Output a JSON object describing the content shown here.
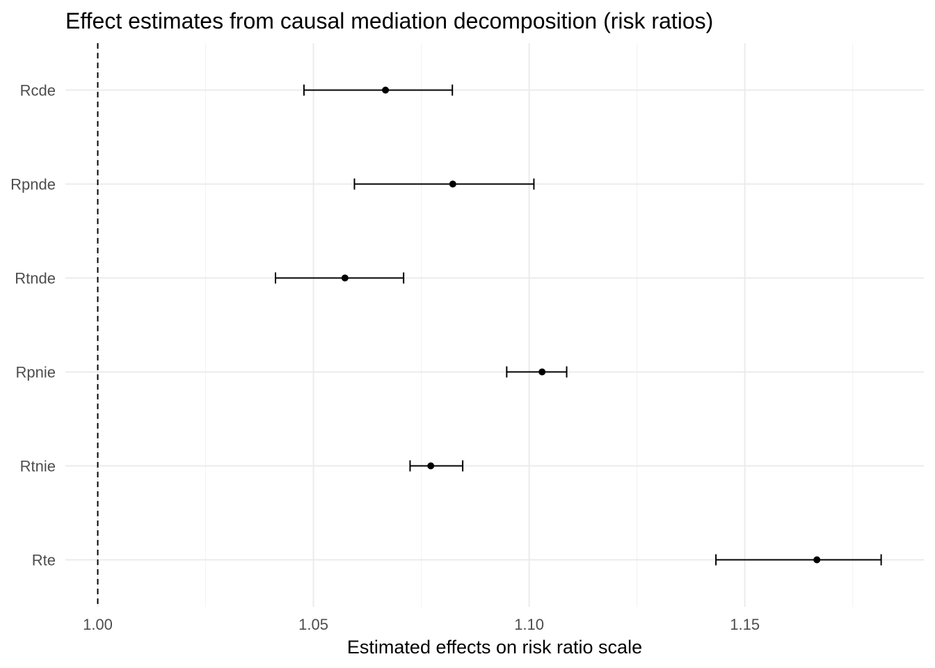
{
  "chart_data": {
    "type": "scatter",
    "title": "Effect estimates from causal mediation decomposition (risk ratios)",
    "xlabel": "Estimated effects on risk ratio scale",
    "ylabel": "",
    "xlim": [
      0.9925,
      1.1915
    ],
    "x_ticks": [
      1.0,
      1.05,
      1.1,
      1.15
    ],
    "x_tick_labels": [
      "1.00",
      "1.05",
      "1.10",
      "1.15"
    ],
    "reference_line": {
      "x": 1.0,
      "style": "dashed"
    },
    "grid": true,
    "categories": [
      "Rcde",
      "Rpnde",
      "Rtnde",
      "Rpnie",
      "Rtnie",
      "Rte"
    ],
    "estimates": [
      {
        "label": "Rcde",
        "value": 1.0667,
        "lower": 1.0478,
        "upper": 1.0822
      },
      {
        "label": "Rpnde",
        "value": 1.0823,
        "lower": 1.0595,
        "upper": 1.1011
      },
      {
        "label": "Rtnde",
        "value": 1.0573,
        "lower": 1.0412,
        "upper": 1.0709
      },
      {
        "label": "Rpnie",
        "value": 1.103,
        "lower": 1.0948,
        "upper": 1.1087
      },
      {
        "label": "Rtnie",
        "value": 1.0772,
        "lower": 1.0724,
        "upper": 1.0846
      },
      {
        "label": "Rte",
        "value": 1.1667,
        "lower": 1.1433,
        "upper": 1.1816
      }
    ]
  }
}
